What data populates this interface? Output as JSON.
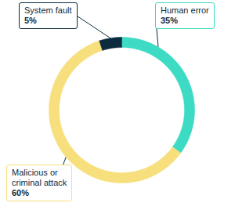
{
  "chart_data": {
    "type": "donut",
    "categories": [
      "Human error",
      "Malicious or criminal attack",
      "System fault"
    ],
    "values": [
      35,
      60,
      5
    ],
    "value_labels": [
      "35%",
      "60%",
      "5%"
    ],
    "colors": [
      "#3ddbc3",
      "#f6df7c",
      "#0d2b3e"
    ],
    "data_labels": true
  }
}
